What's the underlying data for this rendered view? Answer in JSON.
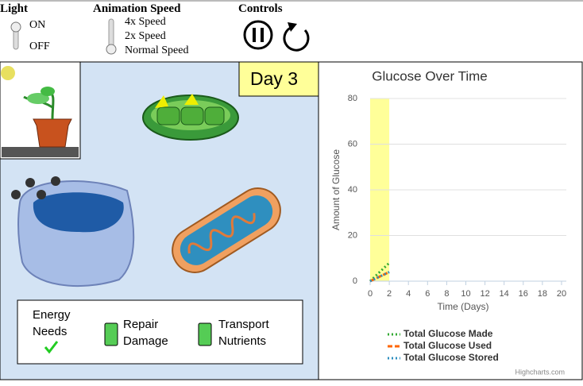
{
  "controls": {
    "light": {
      "title": "Light",
      "options": [
        "ON",
        "OFF"
      ]
    },
    "speed": {
      "title": "Animation Speed",
      "options": [
        "4x Speed",
        "2x Speed",
        "Normal Speed"
      ]
    },
    "playback": {
      "title": "Controls"
    }
  },
  "simulation": {
    "day": "Day 3",
    "needs": [
      "Energy Needs",
      "Repair Damage",
      "Transport Nutrients"
    ]
  },
  "chart_data": {
    "type": "line",
    "title": "Glucose Over Time",
    "x_label": "Time (Days)",
    "y_label": "Amount of Glucose",
    "x": [
      0,
      1,
      2
    ],
    "xlim": [
      0,
      20.5
    ],
    "xticks": [
      0,
      2,
      4,
      6,
      8,
      10,
      12,
      14,
      16,
      18,
      20
    ],
    "ylim": [
      0,
      80
    ],
    "yticks": [
      0,
      20,
      40,
      60,
      80
    ],
    "grid": true,
    "plot_band": {
      "from": 0,
      "to": 2,
      "color": "#ffff99"
    },
    "series": [
      {
        "name": "Total Glucose Made",
        "color": "#33aa33",
        "dash": "2,3",
        "values": [
          0,
          4,
          8
        ]
      },
      {
        "name": "Total Glucose Used",
        "color": "#ff6600",
        "dash": "6,3",
        "values": [
          0,
          2,
          4
        ]
      },
      {
        "name": "Total Glucose Stored",
        "color": "#2f8fbf",
        "dash": "2,3",
        "values": [
          0,
          2,
          4
        ]
      }
    ],
    "credits": "Highcharts.com"
  }
}
